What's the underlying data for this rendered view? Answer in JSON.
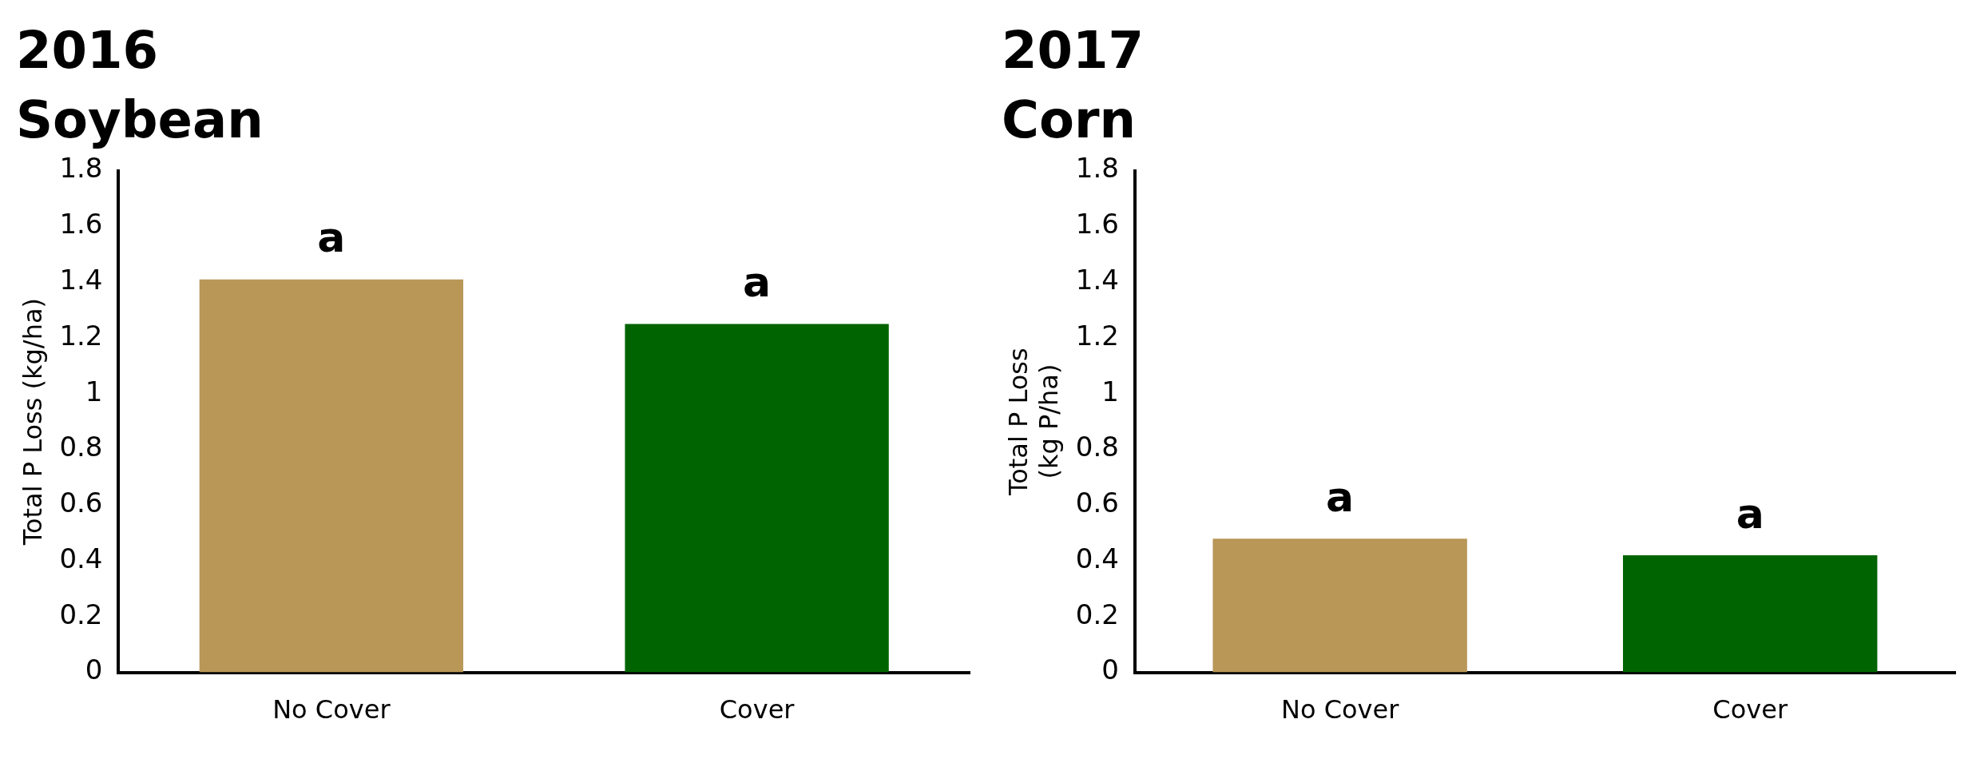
{
  "chart_data": [
    {
      "type": "bar",
      "title": "2016",
      "subtitle": "Soybean",
      "ylabel": "Total P Loss (kg/ha)",
      "categories": [
        "No Cover",
        "Cover"
      ],
      "values": [
        1.41,
        1.25
      ],
      "colors": [
        "#b89757",
        "#006400"
      ],
      "ylim": [
        0,
        1.8
      ],
      "yticks": [
        0,
        0.2,
        0.4,
        0.6,
        0.8,
        1,
        1.2,
        1.4,
        1.6,
        1.8
      ],
      "grid": false,
      "legend": false,
      "annotations": [
        {
          "text": "a",
          "x": "No Cover",
          "y": 1.41
        },
        {
          "text": "a",
          "x": "Cover",
          "y": 1.25
        }
      ]
    },
    {
      "type": "bar",
      "title": "2017",
      "subtitle": "Corn",
      "ylabel": "Total P Loss\n(kg P/ha)",
      "categories": [
        "No Cover",
        "Cover"
      ],
      "values": [
        0.48,
        0.42
      ],
      "colors": [
        "#b89757",
        "#006400"
      ],
      "ylim": [
        0,
        1.8
      ],
      "yticks": [
        0,
        0.2,
        0.4,
        0.6,
        0.8,
        1,
        1.2,
        1.4,
        1.6,
        1.8
      ],
      "grid": false,
      "legend": false,
      "annotations": [
        {
          "text": "a",
          "x": "No Cover",
          "y": 0.48
        },
        {
          "text": "a",
          "x": "Cover",
          "y": 0.42
        }
      ]
    }
  ]
}
